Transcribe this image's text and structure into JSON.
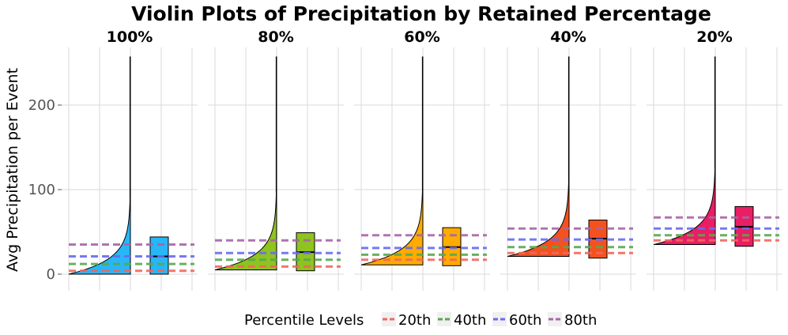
{
  "chart_data": {
    "type": "violin",
    "title": "Violin Plots of Precipitation by Retained Percentage",
    "ylabel": "Avg Precipitation per Event",
    "xlabel": "",
    "ylim": [
      -12,
      268
    ],
    "yticks": [
      0,
      100,
      200
    ],
    "ytick_labels": [
      "0",
      "100",
      "200"
    ],
    "legend": {
      "title": "Percentile Levels",
      "position": "bottom",
      "entries": [
        {
          "label": "20th",
          "color": "#f2675f"
        },
        {
          "label": "40th",
          "color": "#58a84f"
        },
        {
          "label": "60th",
          "color": "#6a6af2"
        },
        {
          "label": "80th",
          "color": "#a866a8"
        }
      ]
    },
    "panels": [
      {
        "label": "100%",
        "color": "#29b6f6",
        "violin": {
          "min": 0,
          "max": 257,
          "base": 0,
          "width_scale": 78
        },
        "box": {
          "q1": 0,
          "median": 21,
          "q3": 44
        },
        "percentiles": {
          "p20": 4,
          "p40": 12,
          "p60": 21,
          "p80": 35
        }
      },
      {
        "label": "80%",
        "color": "#8fc31f",
        "violin": {
          "min": 5,
          "max": 257,
          "base": 5,
          "width_scale": 78
        },
        "box": {
          "q1": 4,
          "median": 26,
          "q3": 49
        },
        "percentiles": {
          "p20": 9,
          "p40": 17,
          "p60": 25,
          "p80": 40
        }
      },
      {
        "label": "60%",
        "color": "#ffab00",
        "violin": {
          "min": 11,
          "max": 257,
          "base": 11,
          "width_scale": 78
        },
        "box": {
          "q1": 10,
          "median": 32,
          "q3": 55
        },
        "percentiles": {
          "p20": 17,
          "p40": 23,
          "p60": 31,
          "p80": 46
        }
      },
      {
        "label": "40%",
        "color": "#f4511e",
        "violin": {
          "min": 21,
          "max": 257,
          "base": 21,
          "width_scale": 78
        },
        "box": {
          "q1": 19,
          "median": 42,
          "q3": 64
        },
        "percentiles": {
          "p20": 25,
          "p40": 32,
          "p60": 41,
          "p80": 54
        }
      },
      {
        "label": "20%",
        "color": "#e91e63",
        "violin": {
          "min": 35,
          "max": 257,
          "base": 35,
          "width_scale": 78
        },
        "box": {
          "q1": 33,
          "median": 56,
          "q3": 80
        },
        "percentiles": {
          "p20": 40,
          "p40": 46,
          "p60": 54,
          "p80": 67
        }
      }
    ]
  }
}
